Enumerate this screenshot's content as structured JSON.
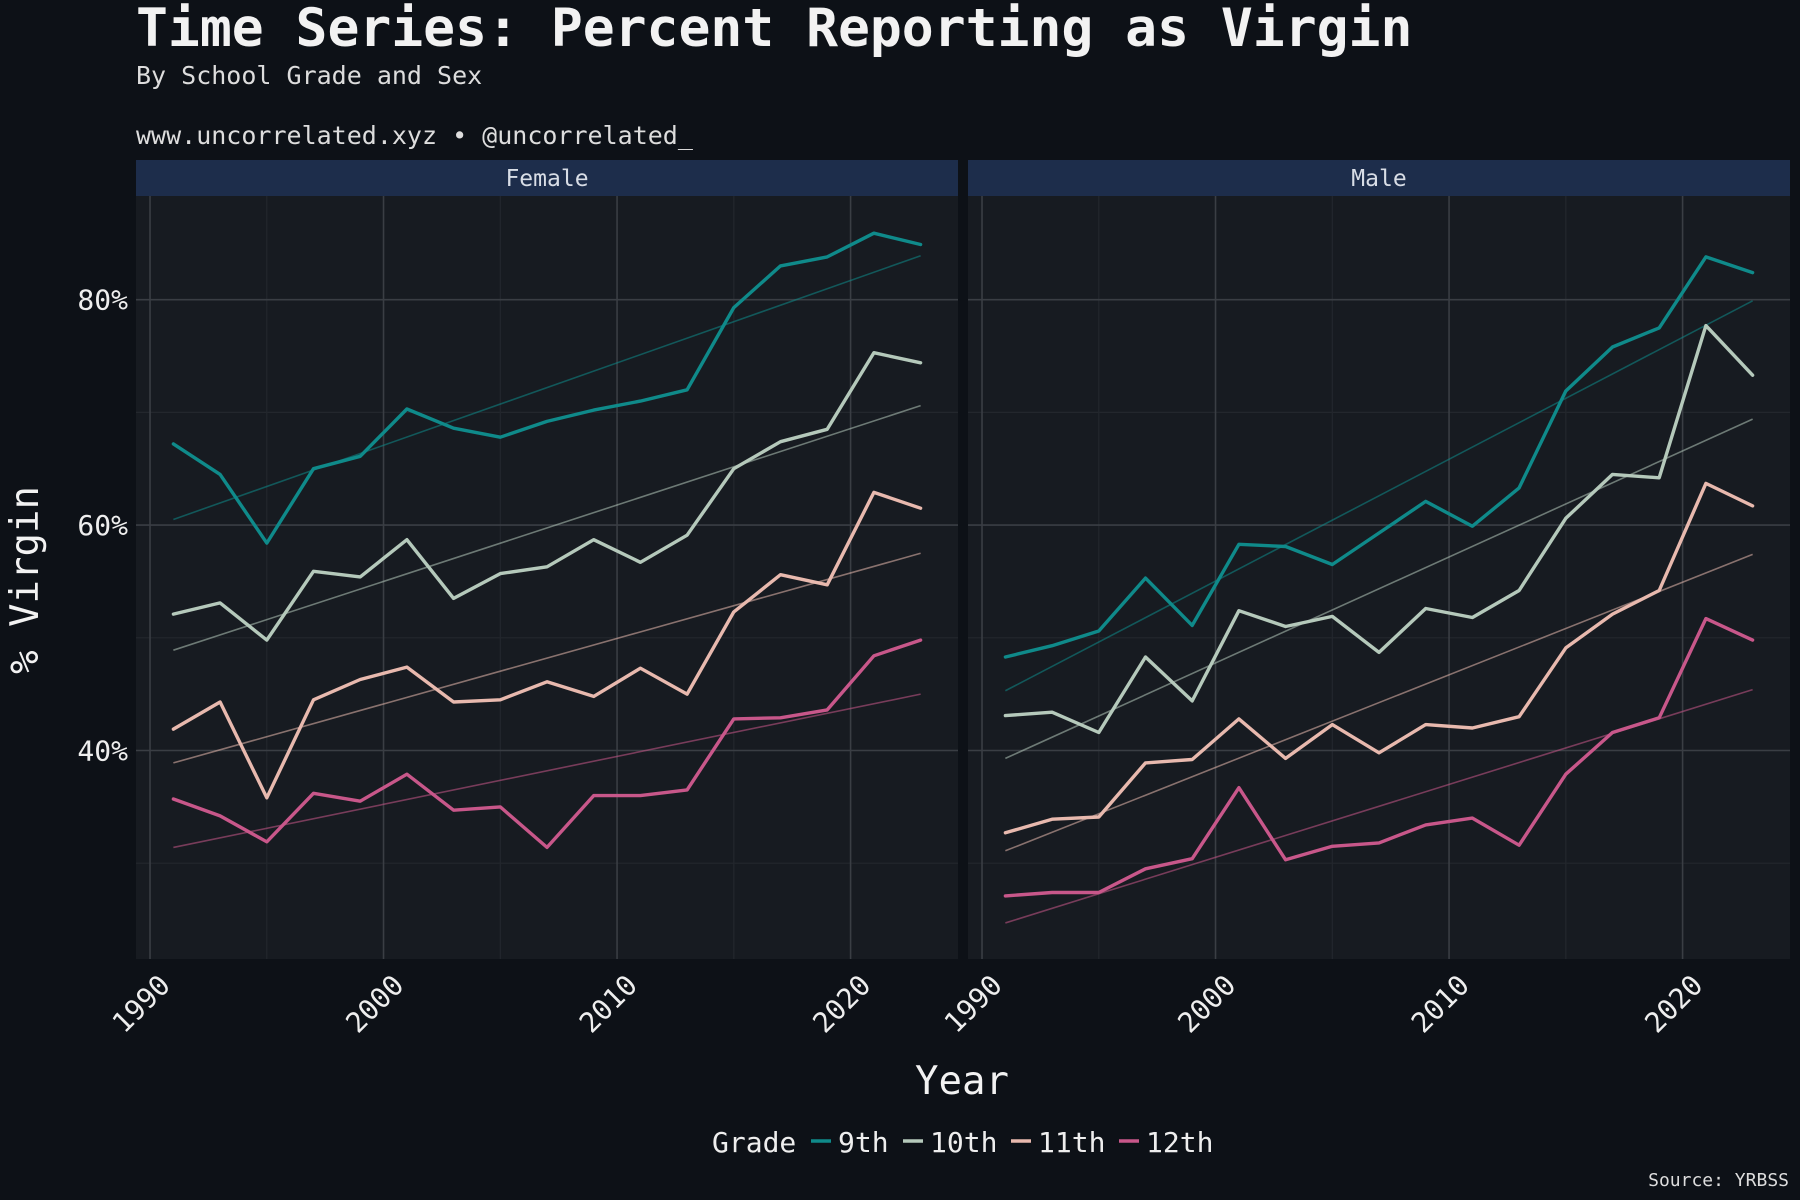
{
  "title": "Time Series: Percent Reporting as Virgin",
  "subtitle": "By School Grade and Sex",
  "byline": "www.uncorrelated.xyz • @uncorrelated_",
  "caption": "Source: YRBSS",
  "colors": {
    "background": "#0d1117",
    "panel": "#171b21",
    "strip": "#1d2d4b",
    "grid_major": "#3a3e44",
    "grid_minor": "#23272d",
    "trend": "#8a8a8a"
  },
  "chart_data": {
    "type": "line",
    "xlabel": "Year",
    "ylabel": "% Virgin",
    "xlim": [
      1989.4,
      2024.6
    ],
    "ylim": [
      21.5,
      89.2
    ],
    "x_ticks": [
      1990,
      2000,
      2010,
      2020
    ],
    "x_tick_labels": [
      "1990",
      "2000",
      "2010",
      "2020"
    ],
    "y_ticks": [
      40,
      60,
      80
    ],
    "y_tick_labels": [
      "40%",
      "60%",
      "80%"
    ],
    "y_minor_ticks": [
      30,
      50,
      70
    ],
    "x_minor_ticks": [
      1995,
      2005,
      2015
    ],
    "grid": true,
    "legend": {
      "title": "Grade",
      "position": "bottom"
    },
    "x": [
      1991,
      1993,
      1995,
      1997,
      1999,
      2001,
      2003,
      2005,
      2007,
      2009,
      2011,
      2013,
      2015,
      2017,
      2019,
      2021,
      2023
    ],
    "panels": [
      {
        "name": "Female",
        "series": [
          {
            "name": "9th",
            "color": "#0f8a8a",
            "values": [
              67.2,
              64.5,
              58.4,
              65.0,
              66.1,
              70.3,
              68.6,
              67.8,
              69.2,
              70.2,
              71.0,
              72.0,
              79.3,
              83.0,
              83.8,
              85.9,
              84.9
            ],
            "trend": [
              60.5,
              83.9
            ]
          },
          {
            "name": "10th",
            "color": "#b5c9bb",
            "values": [
              52.1,
              53.1,
              49.8,
              55.9,
              55.4,
              58.7,
              53.5,
              55.7,
              56.3,
              58.7,
              56.7,
              59.1,
              65.0,
              67.4,
              68.5,
              75.3,
              74.4
            ],
            "trend": [
              48.9,
              70.6
            ]
          },
          {
            "name": "11th",
            "color": "#e8b9ae",
            "values": [
              41.9,
              44.3,
              35.8,
              44.5,
              46.3,
              47.4,
              44.3,
              44.5,
              46.1,
              44.8,
              47.3,
              45.0,
              52.3,
              55.6,
              54.7,
              62.9,
              61.5
            ],
            "trend": [
              38.9,
              57.5
            ]
          },
          {
            "name": "12th",
            "color": "#c8578a",
            "values": [
              35.7,
              34.2,
              31.9,
              36.2,
              35.5,
              37.9,
              34.7,
              35.0,
              31.4,
              36.0,
              36.0,
              36.5,
              42.8,
              42.9,
              43.6,
              48.4,
              49.8
            ],
            "trend": [
              31.4,
              45.0
            ]
          }
        ]
      },
      {
        "name": "Male",
        "series": [
          {
            "name": "9th",
            "color": "#0f8a8a",
            "values": [
              48.3,
              49.3,
              50.6,
              55.3,
              51.1,
              58.3,
              58.1,
              56.5,
              59.3,
              62.1,
              59.9,
              63.3,
              71.9,
              75.8,
              77.5,
              83.8,
              82.4
            ],
            "trend": [
              45.3,
              79.9
            ]
          },
          {
            "name": "10th",
            "color": "#b5c9bb",
            "values": [
              43.1,
              43.4,
              41.6,
              48.3,
              44.4,
              52.4,
              51.0,
              51.9,
              48.7,
              52.6,
              51.8,
              54.2,
              60.6,
              64.5,
              64.2,
              77.7,
              73.3
            ],
            "trend": [
              39.3,
              69.4
            ]
          },
          {
            "name": "11th",
            "color": "#e8b9ae",
            "values": [
              32.7,
              33.9,
              34.1,
              38.9,
              39.2,
              42.8,
              39.3,
              42.3,
              39.8,
              42.3,
              42.0,
              43.0,
              49.1,
              52.1,
              54.2,
              63.7,
              61.7
            ],
            "trend": [
              31.1,
              57.4
            ]
          },
          {
            "name": "12th",
            "color": "#c8578a",
            "values": [
              27.1,
              27.4,
              27.4,
              29.5,
              30.4,
              36.7,
              30.3,
              31.5,
              31.8,
              33.4,
              34.0,
              31.6,
              37.9,
              41.6,
              42.9,
              51.7,
              49.8
            ],
            "trend": [
              24.7,
              45.4
            ]
          }
        ]
      }
    ]
  }
}
